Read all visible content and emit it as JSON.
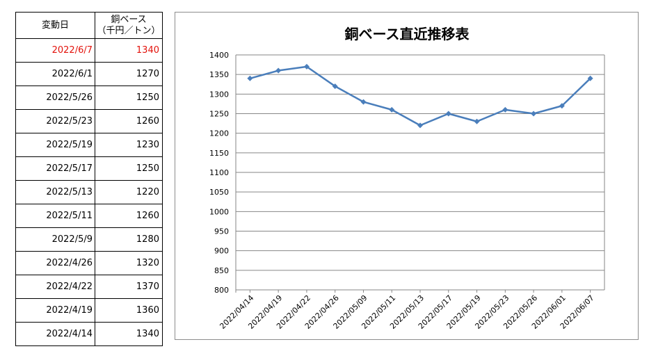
{
  "table": {
    "header_date": "変動日",
    "header_price_line1": "銅ベース",
    "header_price_line2": "（千円／トン）",
    "rows": [
      {
        "date": "2022/6/7",
        "price": "1340"
      },
      {
        "date": "2022/6/1",
        "price": "1270"
      },
      {
        "date": "2022/5/26",
        "price": "1250"
      },
      {
        "date": "2022/5/23",
        "price": "1260"
      },
      {
        "date": "2022/5/19",
        "price": "1230"
      },
      {
        "date": "2022/5/17",
        "price": "1250"
      },
      {
        "date": "2022/5/13",
        "price": "1220"
      },
      {
        "date": "2022/5/11",
        "price": "1260"
      },
      {
        "date": "2022/5/9",
        "price": "1280"
      },
      {
        "date": "2022/4/26",
        "price": "1320"
      },
      {
        "date": "2022/4/22",
        "price": "1370"
      },
      {
        "date": "2022/4/19",
        "price": "1360"
      },
      {
        "date": "2022/4/14",
        "price": "1340"
      }
    ],
    "highlight_color": "#e3120b"
  },
  "chart_data": {
    "type": "line",
    "title": "銅ベース直近推移表",
    "xlabel": "",
    "ylabel": "",
    "categories": [
      "2022/04/14",
      "2022/04/19",
      "2022/04/22",
      "2022/04/26",
      "2022/05/09",
      "2022/05/11",
      "2022/05/13",
      "2022/05/17",
      "2022/05/19",
      "2022/05/23",
      "2022/05/26",
      "2022/06/01",
      "2022/06/07"
    ],
    "series": [
      {
        "values": [
          1340,
          1360,
          1370,
          1320,
          1280,
          1260,
          1220,
          1250,
          1230,
          1260,
          1250,
          1270,
          1340
        ],
        "color": "#4a7ebb"
      }
    ],
    "ylim": [
      800,
      1400
    ],
    "yticks": [
      1400,
      1350,
      1300,
      1250,
      1200,
      1150,
      1100,
      1050,
      1000,
      950,
      900,
      850,
      800
    ],
    "grid": true,
    "marker": "diamond",
    "legend": "none",
    "gridline_color": "#868686"
  }
}
